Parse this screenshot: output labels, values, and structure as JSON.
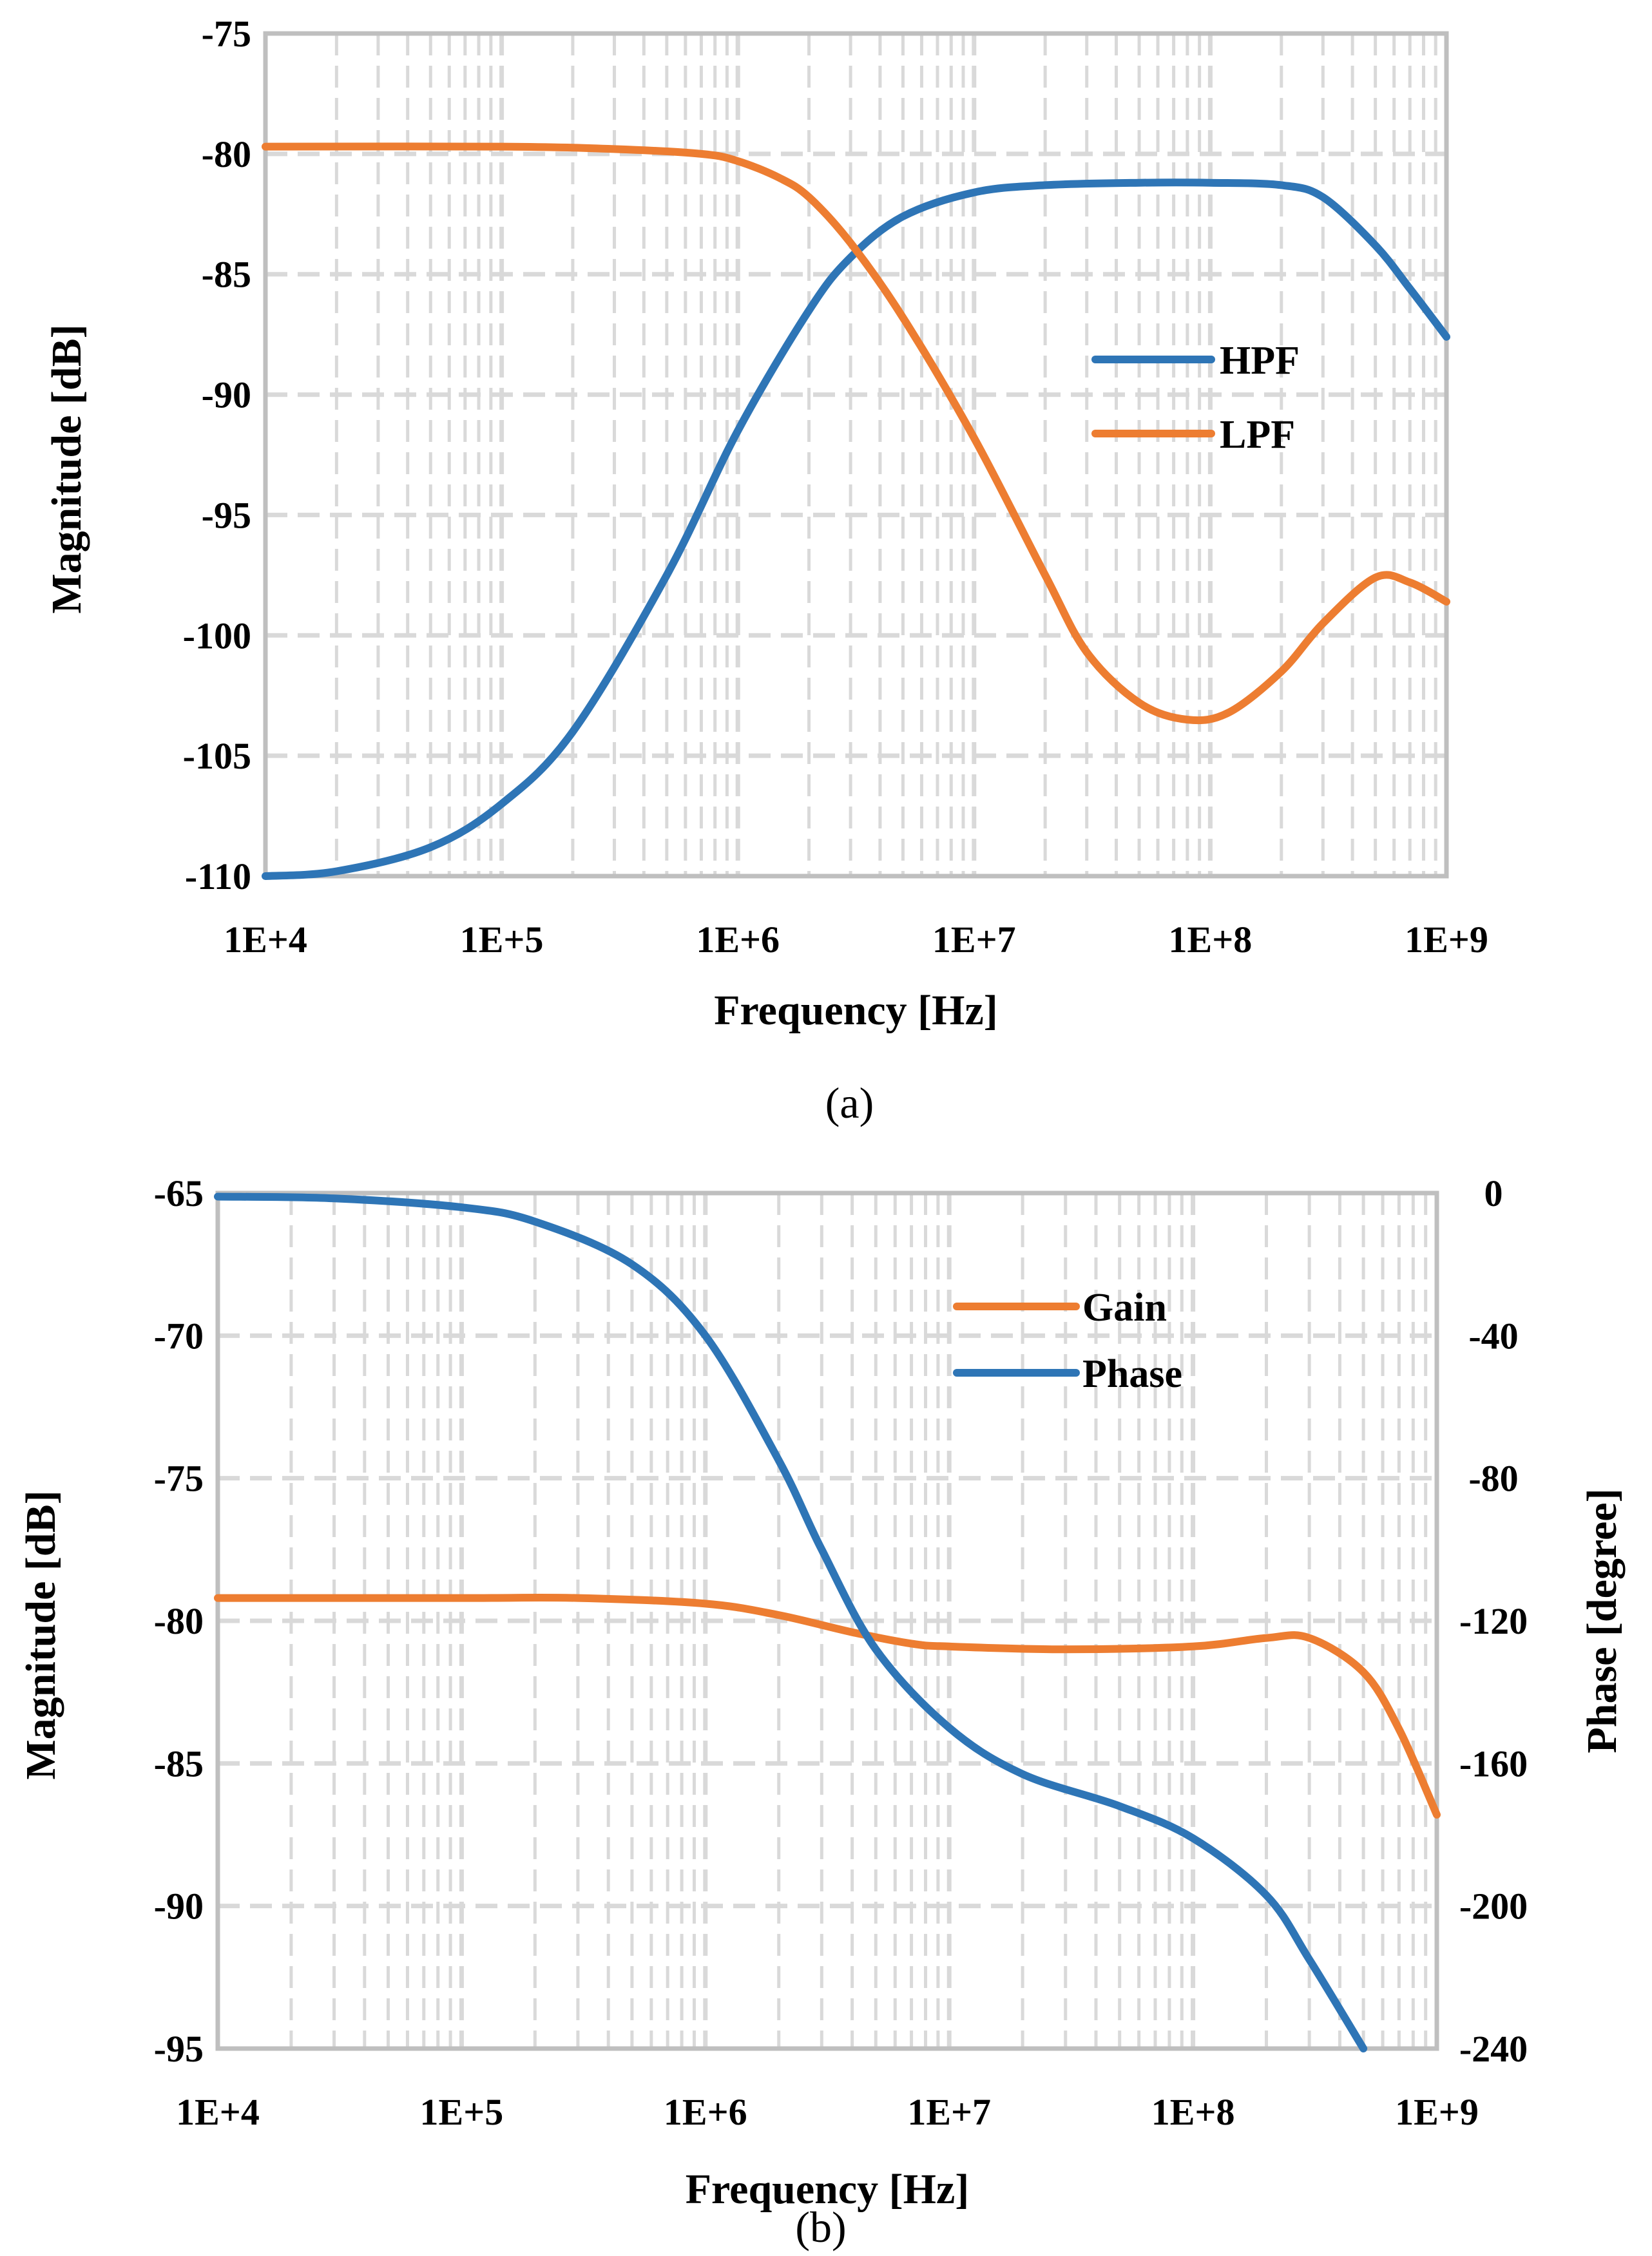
{
  "colors": {
    "blue": "#2E75B6",
    "orange": "#ED7D31",
    "grid": "#D9D9D9",
    "axis": "#BFBFBF"
  },
  "chart_data": [
    {
      "id": "a",
      "type": "line",
      "caption": "(a)",
      "xscale": "log",
      "xlim": [
        10000,
        1000000000
      ],
      "x_tick_labels": [
        "1E+4",
        "1E+5",
        "1E+6",
        "1E+7",
        "1E+8",
        "1E+9"
      ],
      "ylim": [
        -110,
        -75
      ],
      "y_tick_labels": [
        "-75",
        "-80",
        "-85",
        "-90",
        "-95",
        "-100",
        "-105",
        "-110"
      ],
      "xlabel": "Frequency [Hz]",
      "ylabel": "Magnitude [dB]",
      "grid": true,
      "legend": "center-right",
      "series": [
        {
          "name": "HPF",
          "color": "#2E75B6",
          "axis": "left",
          "x": [
            10000,
            20000,
            50000,
            100000,
            200000,
            500000,
            1000000,
            2000000,
            3000000,
            5000000,
            10000000,
            20000000,
            50000000,
            100000000,
            200000000,
            300000000,
            500000000,
            700000000,
            1000000000
          ],
          "values": [
            -110,
            -109.8,
            -108.8,
            -107,
            -104,
            -97.5,
            -91.5,
            -86.5,
            -84.3,
            -82.6,
            -81.6,
            -81.3,
            -81.2,
            -81.2,
            -81.3,
            -81.8,
            -83.8,
            -85.6,
            -87.6
          ]
        },
        {
          "name": "LPF",
          "color": "#ED7D31",
          "axis": "left",
          "x": [
            10000,
            100000,
            300000,
            700000,
            1000000,
            1500000,
            2000000,
            3000000,
            5000000,
            10000000,
            20000000,
            30000000,
            50000000,
            80000000,
            120000000,
            200000000,
            300000000,
            500000000,
            700000000,
            1000000000
          ],
          "values": [
            -79.7,
            -79.7,
            -79.8,
            -80,
            -80.3,
            -81,
            -81.8,
            -83.7,
            -86.8,
            -91.8,
            -97.5,
            -100.7,
            -102.8,
            -103.5,
            -103.2,
            -101.5,
            -99.5,
            -97.6,
            -97.8,
            -98.6
          ]
        }
      ]
    },
    {
      "id": "b",
      "type": "line",
      "caption": "(b)",
      "xscale": "log",
      "xlim": [
        10000,
        1000000000
      ],
      "x_tick_labels": [
        "1E+4",
        "1E+5",
        "1E+6",
        "1E+7",
        "1E+8",
        "1E+9"
      ],
      "ylim": [
        -95,
        -65
      ],
      "y_tick_labels": [
        "-65",
        "-70",
        "-75",
        "-80",
        "-85",
        "-90",
        "-95"
      ],
      "y2lim": [
        -240,
        0
      ],
      "y2_tick_labels": [
        "0",
        "-40",
        "-80",
        "-120",
        "-160",
        "-200",
        "-240"
      ],
      "xlabel": "Frequency [Hz]",
      "ylabel": "Magnitude [dB]",
      "y2label": "Phase [degree]",
      "grid": true,
      "legend": "top-right",
      "series": [
        {
          "name": "Gain",
          "color": "#ED7D31",
          "axis": "left",
          "x": [
            10000,
            100000,
            300000,
            1000000,
            2000000,
            4000000,
            7000000,
            10000000,
            30000000,
            100000000,
            200000000,
            300000000,
            500000000,
            700000000,
            1000000000
          ],
          "values": [
            -79.2,
            -79.2,
            -79.2,
            -79.4,
            -79.8,
            -80.4,
            -80.8,
            -80.9,
            -81,
            -80.9,
            -80.6,
            -80.6,
            -81.8,
            -83.8,
            -86.8
          ]
        },
        {
          "name": "Phase",
          "color": "#2E75B6",
          "axis": "right",
          "x": [
            10000,
            30000,
            100000,
            200000,
            500000,
            1000000,
            2000000,
            3000000,
            5000000,
            10000000,
            20000000,
            50000000,
            100000000,
            200000000,
            300000000,
            500000000
          ],
          "values": [
            -1,
            -1.5,
            -4,
            -8,
            -20,
            -40,
            -75,
            -100,
            -128,
            -150,
            -163,
            -172,
            -181,
            -197,
            -215,
            -240
          ]
        }
      ]
    }
  ]
}
